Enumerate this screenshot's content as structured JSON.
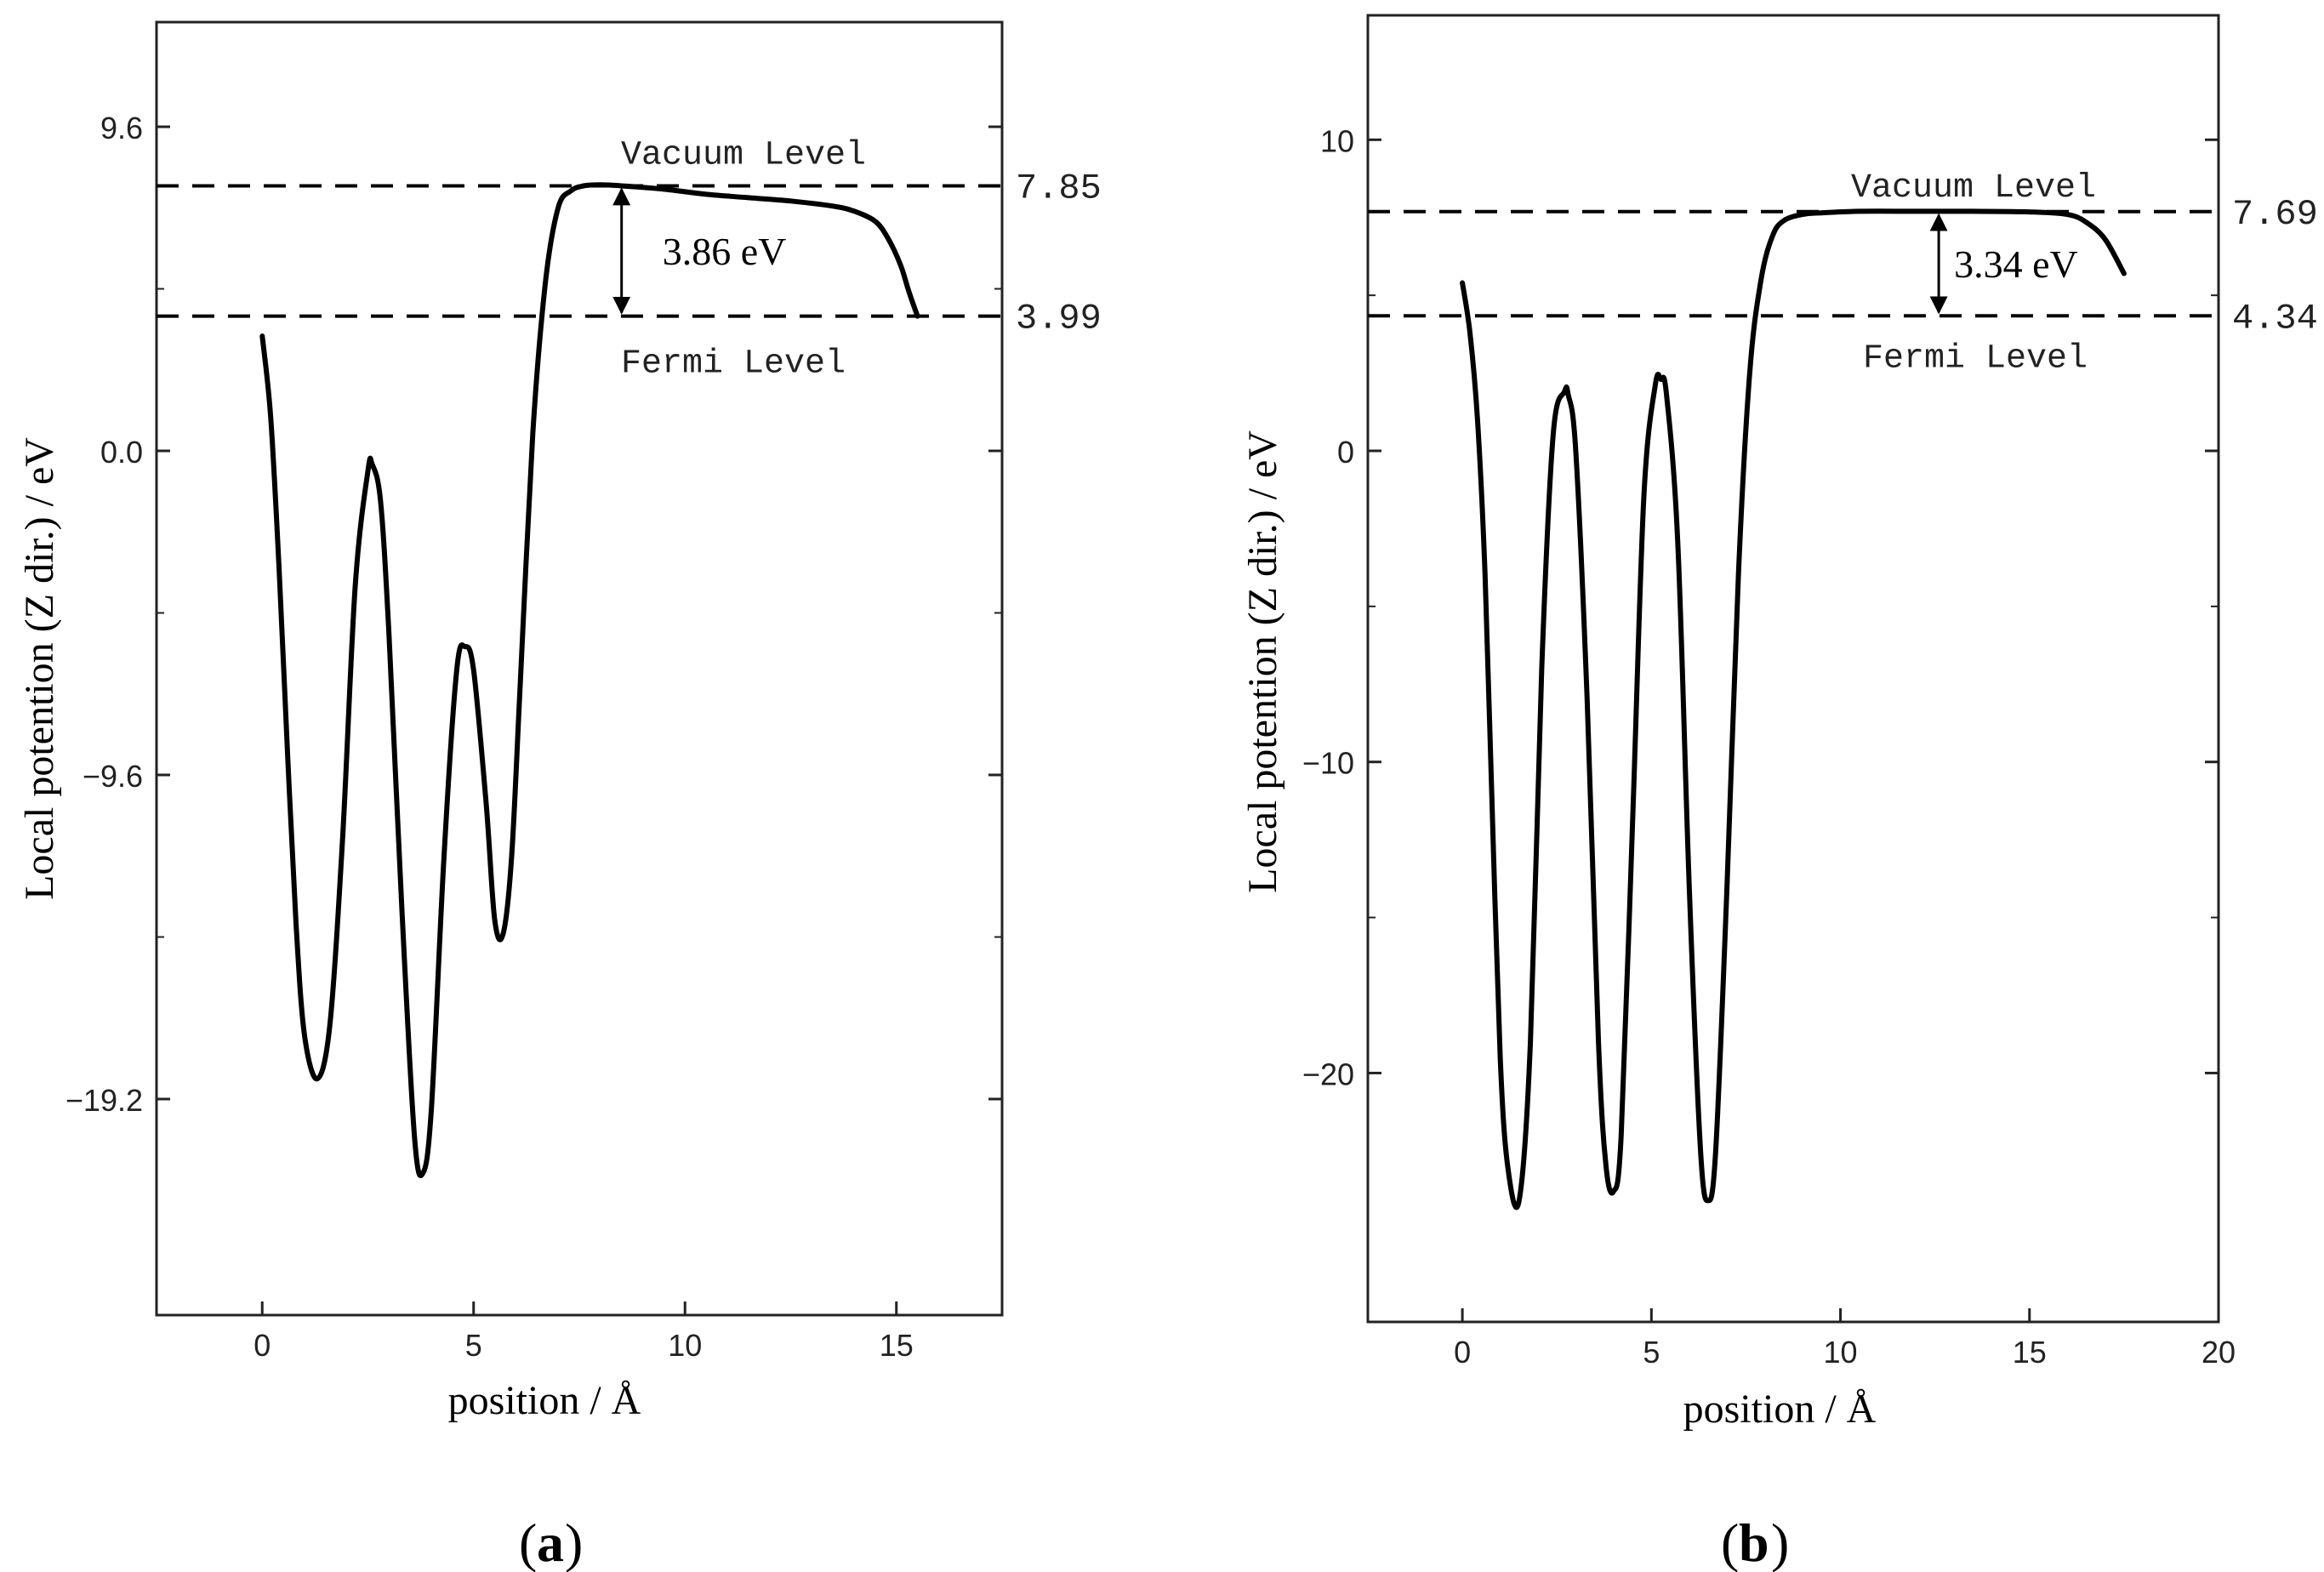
{
  "chart_data": [
    {
      "id": "a",
      "type": "line",
      "panel_label": "a",
      "xlabel": "position / Å",
      "ylabel": "Local potention (Z dir.) / eV",
      "xlim": [
        -2.5,
        17.5
      ],
      "ylim": [
        -25.6,
        12.7
      ],
      "xticks": [
        0,
        5,
        10,
        15
      ],
      "xtick_labels": [
        "0",
        "5",
        "10",
        "15"
      ],
      "yticks": [
        9.6,
        0.0,
        -9.6,
        -19.2
      ],
      "ytick_labels": [
        "9.6",
        "0.0",
        "−9.6",
        "−19.2"
      ],
      "vacuum_level": 7.85,
      "fermi_level": 3.99,
      "vacuum_label": "Vacuum Level",
      "fermi_label": "Fermi Level",
      "vacuum_value_label": "7.85",
      "fermi_value_label": "3.99",
      "work_function_label": "3.86 eV",
      "arrow_x": 8.5,
      "series": [
        {
          "name": "potential",
          "x": [
            0,
            0.2,
            0.4,
            0.6,
            0.8,
            1.0,
            1.3,
            1.6,
            1.9,
            2.2,
            2.5,
            2.6,
            2.8,
            3.0,
            3.3,
            3.6,
            3.8,
            4.0,
            4.3,
            4.6,
            4.8,
            5.0,
            5.3,
            5.5,
            5.7,
            5.9,
            6.1,
            6.4,
            6.7,
            7.0,
            7.3,
            7.6,
            8.0,
            8.5,
            9.5,
            10.5,
            11.5,
            12.5,
            13.5,
            14.0,
            14.5,
            14.8,
            15.1,
            15.3,
            15.5
          ],
          "y": [
            3.4,
            1.0,
            -3.5,
            -9.0,
            -14.0,
            -17.3,
            -18.6,
            -17.0,
            -11.5,
            -4.0,
            -0.6,
            -0.4,
            -1.5,
            -5.5,
            -13.5,
            -20.3,
            -21.4,
            -19.5,
            -12.0,
            -6.5,
            -5.8,
            -6.5,
            -10.5,
            -13.9,
            -14.3,
            -12.0,
            -7.0,
            0.5,
            5.0,
            7.2,
            7.7,
            7.85,
            7.88,
            7.85,
            7.75,
            7.6,
            7.5,
            7.4,
            7.25,
            7.1,
            6.8,
            6.3,
            5.5,
            4.7,
            3.99
          ]
        }
      ]
    },
    {
      "id": "b",
      "type": "line",
      "panel_label": "b",
      "xlabel": "position / Å",
      "ylabel": "Local potention (Z dir.) / eV",
      "xlim": [
        -2.5,
        20
      ],
      "ylim": [
        -28,
        14
      ],
      "xticks": [
        0,
        5,
        10,
        15,
        20
      ],
      "xtick_labels": [
        "0",
        "5",
        "10",
        "15",
        "20"
      ],
      "yticks": [
        10,
        0,
        -10,
        -20
      ],
      "ytick_labels": [
        "10",
        "0",
        "−10",
        "−20"
      ],
      "vacuum_level": 7.69,
      "fermi_level": 4.34,
      "vacuum_label": "Vacuum Level",
      "fermi_label": "Fermi Level",
      "vacuum_value_label": "7.69",
      "fermi_value_label": "4.34",
      "work_function_label": "3.34 eV",
      "arrow_x": 12.6,
      "series": [
        {
          "name": "potential",
          "x": [
            0,
            0.2,
            0.4,
            0.6,
            0.8,
            1.0,
            1.2,
            1.5,
            1.8,
            2.1,
            2.4,
            2.7,
            2.8,
            3.0,
            3.3,
            3.6,
            3.8,
            4.0,
            4.2,
            4.5,
            4.8,
            5.1,
            5.25,
            5.4,
            5.7,
            6.0,
            6.3,
            6.5,
            6.7,
            7.0,
            7.3,
            7.6,
            7.9,
            8.2,
            8.5,
            9.0,
            9.5,
            10.5,
            12.0,
            13.5,
            15.0,
            16.0,
            16.5,
            17.0,
            17.5
          ],
          "y": [
            5.4,
            3.8,
            1.0,
            -4.0,
            -12.0,
            -19.5,
            -23.0,
            -24.1,
            -19.0,
            -7.0,
            0.5,
            1.9,
            1.8,
            0.0,
            -8.0,
            -19.0,
            -23.0,
            -23.8,
            -22.0,
            -12.0,
            -1.5,
            2.1,
            2.3,
            1.8,
            -3.0,
            -14.0,
            -22.5,
            -24.1,
            -22.5,
            -14.0,
            -4.0,
            2.5,
            5.5,
            6.9,
            7.4,
            7.6,
            7.65,
            7.7,
            7.7,
            7.7,
            7.68,
            7.6,
            7.35,
            6.8,
            5.7
          ]
        }
      ]
    }
  ]
}
